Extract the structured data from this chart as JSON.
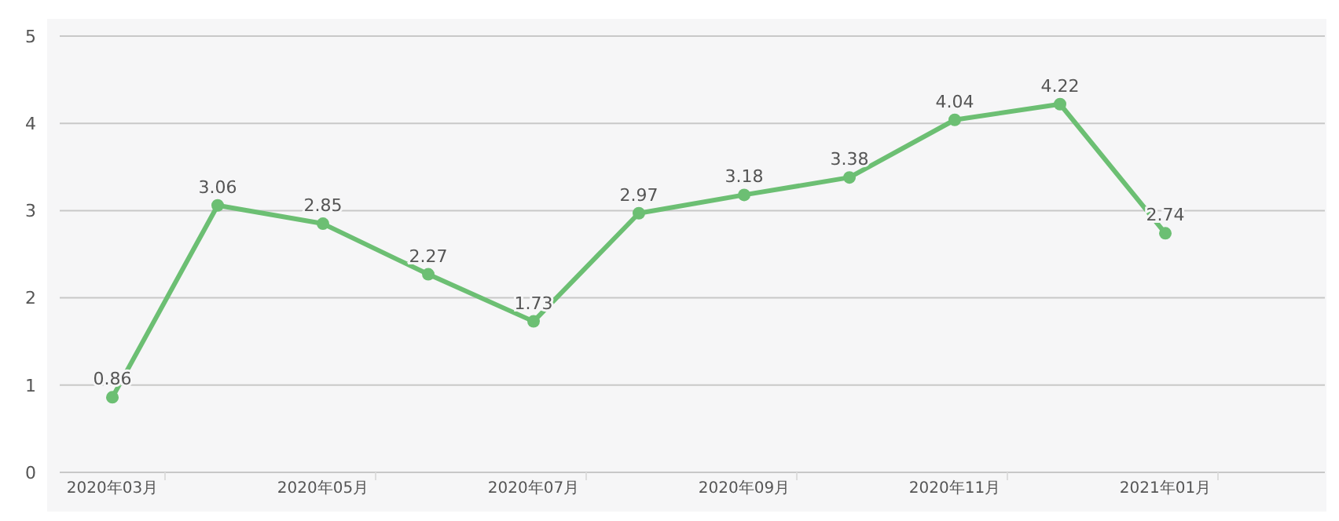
{
  "chart_data": {
    "type": "line",
    "categories": [
      "2020年03月",
      null,
      "2020年05月",
      null,
      "2020年07月",
      null,
      "2020年09月",
      null,
      "2020年11月",
      null,
      "2021年01月"
    ],
    "series": [
      {
        "color": "#6cbf73",
        "values": [
          0.86,
          3.06,
          2.85,
          2.27,
          1.73,
          2.97,
          3.18,
          3.38,
          4.04,
          4.22,
          2.74
        ]
      }
    ],
    "ylim": [
      0,
      5
    ],
    "yticks": [
      0,
      1,
      2,
      3,
      4,
      5
    ],
    "grid": "y",
    "data_labels": true,
    "marker": "circle",
    "line_style": "solid"
  }
}
